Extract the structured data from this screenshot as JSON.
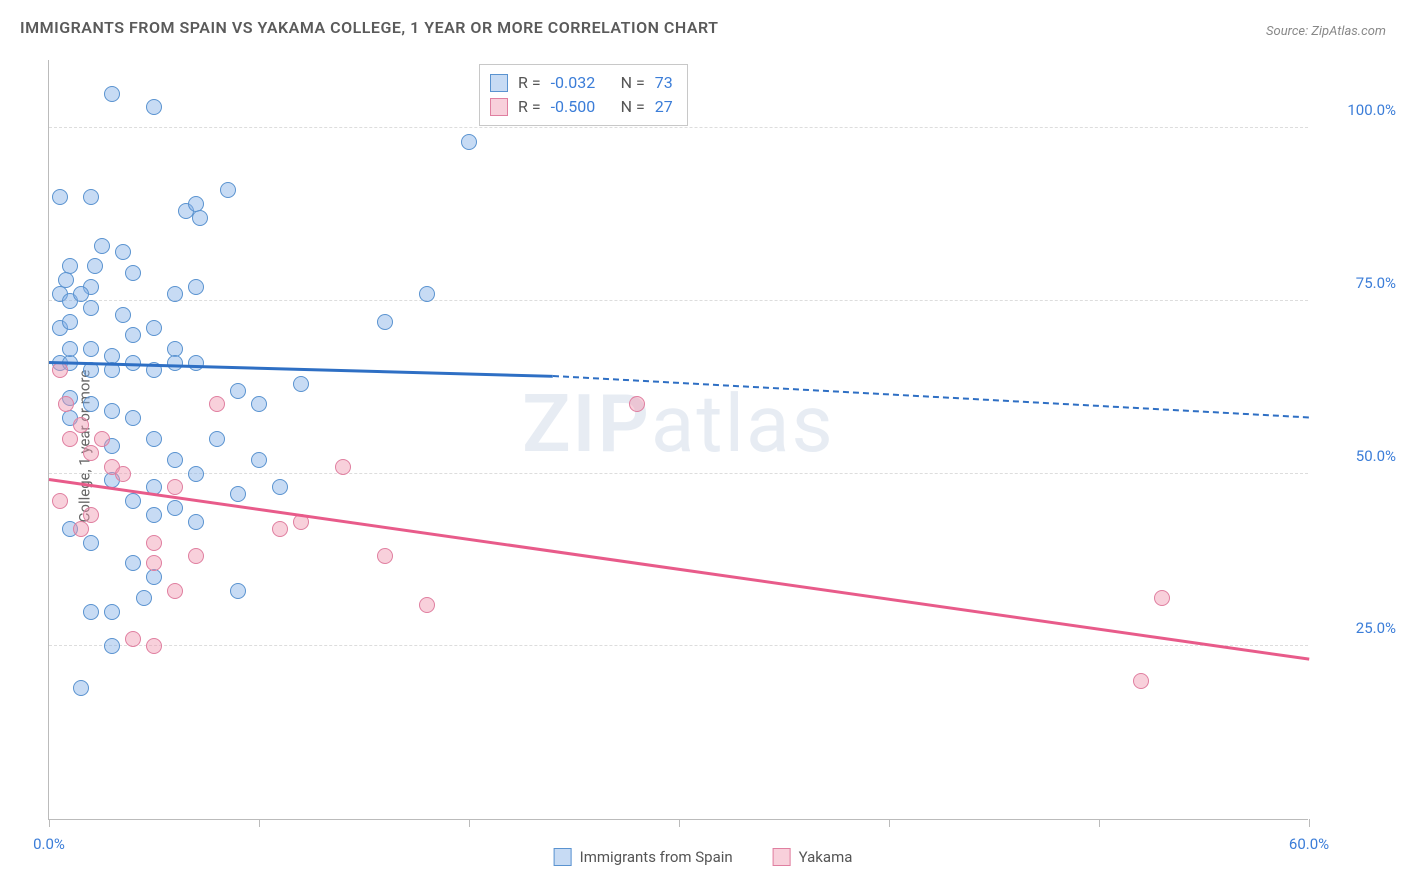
{
  "title": "IMMIGRANTS FROM SPAIN VS YAKAMA COLLEGE, 1 YEAR OR MORE CORRELATION CHART",
  "source": "Source: ZipAtlas.com",
  "ylabel": "College, 1 year or more",
  "watermark_bold": "ZIP",
  "watermark_rest": "atlas",
  "chart": {
    "type": "scatter-with-regression",
    "xlim": [
      0,
      60
    ],
    "ylim": [
      0,
      110
    ],
    "xtick_positions": [
      0,
      10,
      20,
      30,
      40,
      50,
      60
    ],
    "xtick_labels_shown": {
      "0": "0.0%",
      "60": "60.0%"
    },
    "ytick_positions": [
      25,
      50,
      75,
      100
    ],
    "ytick_labels": [
      "25.0%",
      "50.0%",
      "75.0%",
      "100.0%"
    ],
    "grid_color": "#dddddd",
    "axis_color": "#bbbbbb",
    "background_color": "#ffffff",
    "tick_label_color": "#3b7dd8",
    "marker_radius": 8,
    "series": [
      {
        "name": "Immigrants from Spain",
        "fill": "rgba(130,175,230,0.45)",
        "stroke": "#5a93d0",
        "data": [
          [
            3,
            105
          ],
          [
            5,
            103
          ],
          [
            0.5,
            90
          ],
          [
            2,
            90
          ],
          [
            6.5,
            88
          ],
          [
            7,
            89
          ],
          [
            7.2,
            87
          ],
          [
            2.5,
            83
          ],
          [
            8.5,
            91
          ],
          [
            1,
            80
          ],
          [
            3.5,
            82
          ],
          [
            4,
            79
          ],
          [
            2,
            77
          ],
          [
            0.5,
            76
          ],
          [
            1,
            75
          ],
          [
            1.5,
            76
          ],
          [
            6,
            76
          ],
          [
            7,
            77
          ],
          [
            18,
            76
          ],
          [
            20,
            98
          ],
          [
            0.5,
            71
          ],
          [
            1,
            72
          ],
          [
            2,
            68
          ],
          [
            3,
            67
          ],
          [
            4,
            70
          ],
          [
            5,
            71
          ],
          [
            6,
            68
          ],
          [
            0.5,
            66
          ],
          [
            1,
            66
          ],
          [
            2,
            65
          ],
          [
            3,
            65
          ],
          [
            4,
            66
          ],
          [
            5,
            65
          ],
          [
            6,
            66
          ],
          [
            7,
            66
          ],
          [
            16,
            72
          ],
          [
            1,
            61
          ],
          [
            2,
            60
          ],
          [
            3,
            59
          ],
          [
            4,
            58
          ],
          [
            5,
            55
          ],
          [
            6,
            52
          ],
          [
            9,
            62
          ],
          [
            10,
            60
          ],
          [
            12,
            63
          ],
          [
            3,
            49
          ],
          [
            4,
            46
          ],
          [
            5,
            44
          ],
          [
            7,
            50
          ],
          [
            10,
            52
          ],
          [
            4,
            37
          ],
          [
            9,
            47
          ],
          [
            2,
            30
          ],
          [
            5,
            35
          ],
          [
            1.5,
            19
          ],
          [
            3,
            25
          ],
          [
            1,
            68
          ],
          [
            2,
            74
          ],
          [
            3.5,
            73
          ],
          [
            0.8,
            78
          ],
          [
            2.2,
            80
          ],
          [
            1,
            58
          ],
          [
            3,
            54
          ],
          [
            5,
            48
          ],
          [
            6,
            45
          ],
          [
            7,
            43
          ],
          [
            3,
            30
          ],
          [
            4.5,
            32
          ],
          [
            2,
            40
          ],
          [
            1,
            42
          ],
          [
            8,
            55
          ],
          [
            11,
            48
          ],
          [
            9,
            33
          ]
        ],
        "trend": {
          "color": "#2e6fc4",
          "y_at_x0": 66,
          "y_at_solid_end": 64,
          "solid_end_x": 24,
          "y_at_xmax": 58
        },
        "R": "-0.032",
        "N": "73"
      },
      {
        "name": "Yakama",
        "fill": "rgba(240,150,175,0.45)",
        "stroke": "#e07fa0",
        "data": [
          [
            0.5,
            65
          ],
          [
            1,
            55
          ],
          [
            1.5,
            57
          ],
          [
            2,
            53
          ],
          [
            2.5,
            55
          ],
          [
            3,
            51
          ],
          [
            0.5,
            46
          ],
          [
            1.5,
            42
          ],
          [
            3.5,
            50
          ],
          [
            5,
            40
          ],
          [
            5,
            37
          ],
          [
            6,
            48
          ],
          [
            7,
            38
          ],
          [
            8,
            60
          ],
          [
            11,
            42
          ],
          [
            12,
            43
          ],
          [
            14,
            51
          ],
          [
            16,
            38
          ],
          [
            18,
            31
          ],
          [
            28,
            60
          ],
          [
            4,
            26
          ],
          [
            5,
            25
          ],
          [
            53,
            32
          ],
          [
            52,
            20
          ],
          [
            0.8,
            60
          ],
          [
            2,
            44
          ],
          [
            6,
            33
          ]
        ],
        "trend": {
          "color": "#e85b8a",
          "y_at_x0": 49,
          "y_at_xmax": 23,
          "solid_end_x": 60
        },
        "R": "-0.500",
        "N": "27"
      }
    ],
    "stats_box": {
      "R_label": "R =",
      "N_label": "N ="
    },
    "legend_labels": [
      "Immigrants from Spain",
      "Yakama"
    ]
  }
}
